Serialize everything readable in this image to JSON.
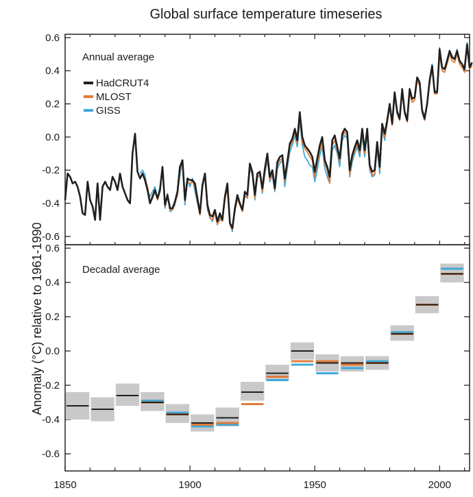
{
  "chart_data": {
    "type": "line",
    "title": "Global surface temperature timeseries",
    "ylabel": "Anomaly (°C) relative to 1961-1990",
    "xlim": [
      1850,
      2012
    ],
    "x_ticks": [
      "1850",
      "1900",
      "1950",
      "2000"
    ],
    "colors": {
      "HadCRUT4": "#1f1f1f",
      "MLOST": "#e07b39",
      "GISS": "#3ea9d9",
      "band": "#c9c9c9"
    },
    "panels": [
      {
        "label": "Annual average",
        "ylim": [
          -0.65,
          0.62
        ],
        "y_ticks": [
          "0.6",
          "0.4",
          "0.2",
          "0.0",
          "-0.2",
          "-0.4",
          "-0.6"
        ],
        "legend_placement": "top-left",
        "series": [
          {
            "name": "HadCRUT4",
            "x_start": 1850,
            "values": [
              -0.38,
              -0.22,
              -0.24,
              -0.28,
              -0.27,
              -0.3,
              -0.36,
              -0.46,
              -0.47,
              -0.27,
              -0.38,
              -0.42,
              -0.5,
              -0.28,
              -0.5,
              -0.3,
              -0.27,
              -0.3,
              -0.32,
              -0.24,
              -0.27,
              -0.32,
              -0.22,
              -0.3,
              -0.34,
              -0.38,
              -0.4,
              -0.1,
              0.02,
              -0.21,
              -0.25,
              -0.22,
              -0.26,
              -0.32,
              -0.4,
              -0.36,
              -0.32,
              -0.37,
              -0.32,
              -0.18,
              -0.41,
              -0.35,
              -0.43,
              -0.43,
              -0.39,
              -0.33,
              -0.18,
              -0.14,
              -0.38,
              -0.25,
              -0.26,
              -0.26,
              -0.28,
              -0.37,
              -0.46,
              -0.29,
              -0.22,
              -0.41,
              -0.47,
              -0.48,
              -0.44,
              -0.51,
              -0.46,
              -0.5,
              -0.36,
              -0.28,
              -0.52,
              -0.55,
              -0.43,
              -0.35,
              -0.4,
              -0.44,
              -0.33,
              -0.35,
              -0.16,
              -0.21,
              -0.35,
              -0.22,
              -0.21,
              -0.31,
              -0.19,
              -0.1,
              -0.24,
              -0.2,
              -0.31,
              -0.15,
              -0.12,
              -0.11,
              -0.25,
              -0.15,
              -0.04,
              -0.01,
              0.05,
              -0.02,
              0.15,
              0.0,
              -0.05,
              -0.07,
              -0.09,
              -0.12,
              -0.21,
              -0.13,
              -0.05,
              0.0,
              -0.14,
              -0.18,
              -0.24,
              -0.02,
              0.01,
              -0.06,
              -0.13,
              0.02,
              0.05,
              0.03,
              -0.2,
              -0.11,
              -0.06,
              -0.02,
              -0.08,
              0.05,
              -0.08,
              0.05,
              -0.17,
              -0.21,
              -0.2,
              -0.03,
              -0.18,
              0.08,
              0.02,
              0.1,
              0.2,
              0.08,
              0.27,
              0.15,
              0.11,
              0.29,
              0.15,
              0.1,
              0.29,
              0.23,
              0.24,
              0.36,
              0.33,
              0.16,
              0.11,
              0.2,
              0.34,
              0.43,
              0.27,
              0.27,
              0.53,
              0.42,
              0.41,
              0.46,
              0.52,
              0.48,
              0.47,
              0.52,
              0.46,
              0.44,
              0.41,
              0.56,
              0.42,
              0.45
            ]
          },
          {
            "name": "MLOST",
            "x_start": 1880,
            "values": [
              -0.25,
              -0.22,
              -0.25,
              -0.3,
              -0.39,
              -0.37,
              -0.33,
              -0.38,
              -0.33,
              -0.19,
              -0.42,
              -0.36,
              -0.44,
              -0.44,
              -0.4,
              -0.35,
              -0.2,
              -0.16,
              -0.39,
              -0.27,
              -0.28,
              -0.27,
              -0.3,
              -0.39,
              -0.47,
              -0.3,
              -0.24,
              -0.43,
              -0.49,
              -0.5,
              -0.46,
              -0.53,
              -0.48,
              -0.51,
              -0.38,
              -0.3,
              -0.53,
              -0.56,
              -0.45,
              -0.37,
              -0.41,
              -0.45,
              -0.35,
              -0.37,
              -0.18,
              -0.23,
              -0.37,
              -0.24,
              -0.23,
              -0.33,
              -0.21,
              -0.12,
              -0.26,
              -0.22,
              -0.32,
              -0.17,
              -0.14,
              -0.13,
              -0.27,
              -0.17,
              -0.06,
              -0.03,
              0.03,
              -0.04,
              0.12,
              -0.03,
              -0.07,
              -0.09,
              -0.12,
              -0.14,
              -0.24,
              -0.16,
              -0.08,
              -0.03,
              -0.16,
              -0.2,
              -0.28,
              -0.05,
              -0.02,
              -0.08,
              -0.15,
              0.0,
              0.03,
              0.01,
              -0.23,
              -0.13,
              -0.08,
              -0.04,
              -0.1,
              0.03,
              -0.1,
              0.03,
              -0.19,
              -0.23,
              -0.22,
              -0.05,
              -0.2,
              0.06,
              0.0,
              0.08,
              0.18,
              0.07,
              0.25,
              0.14,
              0.1,
              0.27,
              0.14,
              0.09,
              0.27,
              0.21,
              0.22,
              0.34,
              0.31,
              0.15,
              0.1,
              0.19,
              0.32,
              0.42,
              0.26,
              0.26,
              0.51,
              0.4,
              0.39,
              0.44,
              0.5,
              0.46,
              0.45,
              0.5,
              0.44,
              0.42,
              0.39,
              0.54,
              0.41,
              0.43
            ]
          },
          {
            "name": "GISS",
            "x_start": 1880,
            "values": [
              -0.22,
              -0.2,
              -0.23,
              -0.32,
              -0.36,
              -0.33,
              -0.3,
              -0.37,
              -0.3,
              -0.2,
              -0.43,
              -0.34,
              -0.45,
              -0.44,
              -0.41,
              -0.33,
              -0.23,
              -0.14,
              -0.41,
              -0.26,
              -0.3,
              -0.25,
              -0.33,
              -0.4,
              -0.46,
              -0.31,
              -0.22,
              -0.44,
              -0.48,
              -0.51,
              -0.45,
              -0.52,
              -0.5,
              -0.5,
              -0.36,
              -0.32,
              -0.52,
              -0.57,
              -0.44,
              -0.38,
              -0.4,
              -0.44,
              -0.36,
              -0.36,
              -0.2,
              -0.22,
              -0.38,
              -0.25,
              -0.22,
              -0.34,
              -0.22,
              -0.14,
              -0.27,
              -0.23,
              -0.33,
              -0.19,
              -0.16,
              -0.14,
              -0.3,
              -0.19,
              -0.09,
              -0.05,
              0.01,
              -0.06,
              0.1,
              -0.05,
              -0.12,
              -0.14,
              -0.17,
              -0.18,
              -0.27,
              -0.2,
              -0.11,
              -0.06,
              -0.19,
              -0.24,
              -0.28,
              -0.08,
              -0.05,
              -0.1,
              -0.18,
              -0.02,
              0.01,
              -0.01,
              -0.24,
              -0.15,
              -0.1,
              -0.06,
              -0.12,
              0.01,
              -0.12,
              0.02,
              -0.2,
              -0.24,
              -0.23,
              -0.07,
              -0.22,
              0.05,
              -0.02,
              0.08,
              0.19,
              0.08,
              0.27,
              0.16,
              0.12,
              0.28,
              0.16,
              0.11,
              0.28,
              0.23,
              0.24,
              0.36,
              0.33,
              0.17,
              0.12,
              0.21,
              0.33,
              0.44,
              0.28,
              0.28,
              0.54,
              0.41,
              0.41,
              0.47,
              0.52,
              0.49,
              0.47,
              0.53,
              0.45,
              0.44,
              0.4,
              0.57,
              0.42,
              0.44
            ]
          }
        ]
      },
      {
        "label": "Decadal average",
        "ylim": [
          -0.7,
          0.62
        ],
        "y_ticks": [
          "0.6",
          "0.4",
          "0.2",
          "0.0",
          "-0.2",
          "-0.4",
          "-0.6"
        ],
        "decades": [
          1850,
          1860,
          1870,
          1880,
          1890,
          1900,
          1910,
          1920,
          1930,
          1940,
          1950,
          1960,
          1970,
          1980,
          1990,
          2000
        ],
        "uncertainty_band": [
          [
            -0.4,
            -0.24
          ],
          [
            -0.41,
            -0.27
          ],
          [
            -0.32,
            -0.19
          ],
          [
            -0.35,
            -0.24
          ],
          [
            -0.42,
            -0.31
          ],
          [
            -0.47,
            -0.37
          ],
          [
            -0.44,
            -0.33
          ],
          [
            -0.29,
            -0.18
          ],
          [
            -0.17,
            -0.08
          ],
          [
            -0.05,
            0.05
          ],
          [
            -0.12,
            -0.02
          ],
          [
            -0.12,
            -0.03
          ],
          [
            -0.11,
            -0.03
          ],
          [
            0.06,
            0.15
          ],
          [
            0.22,
            0.32
          ],
          [
            0.4,
            0.51
          ]
        ],
        "series": [
          {
            "name": "HadCRUT4",
            "values": [
              -0.32,
              -0.34,
              -0.26,
              -0.3,
              -0.37,
              -0.42,
              -0.39,
              -0.24,
              -0.13,
              0.0,
              -0.07,
              -0.07,
              -0.07,
              0.1,
              0.27,
              0.45
            ]
          },
          {
            "name": "MLOST",
            "values": [
              null,
              null,
              null,
              -0.3,
              -0.37,
              -0.43,
              -0.42,
              -0.31,
              -0.15,
              -0.06,
              -0.06,
              -0.08,
              -0.07,
              0.1,
              0.27,
              0.45
            ]
          },
          {
            "name": "GISS",
            "values": [
              null,
              null,
              null,
              -0.29,
              -0.36,
              -0.44,
              -0.43,
              -0.31,
              -0.17,
              -0.08,
              -0.13,
              -0.1,
              -0.06,
              0.11,
              0.27,
              0.48
            ]
          }
        ]
      }
    ]
  }
}
